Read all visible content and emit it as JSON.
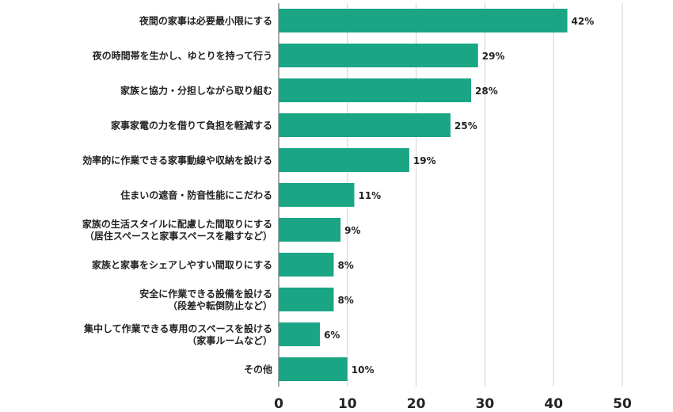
{
  "chart_data": {
    "type": "bar",
    "orientation": "horizontal",
    "categories": [
      [
        "夜間の家事は必要最小限にする"
      ],
      [
        "夜の時間帯を生かし、ゆとりを持って行う"
      ],
      [
        "家族と協力・分担しながら取り組む"
      ],
      [
        "家事家電の力を借りて負担を軽減する"
      ],
      [
        "効率的に作業できる家事動線や収納を設ける"
      ],
      [
        "住まいの遮音・防音性能にこだわる"
      ],
      [
        "家族の生活スタイルに配慮した間取りにする",
        "（居住スペースと家事スペースを離すなど）"
      ],
      [
        "家族と家事をシェアしやすい間取りにする"
      ],
      [
        "安全に作業できる設備を設ける",
        "（段差や転倒防止など）"
      ],
      [
        "集中して作業できる専用のスペースを設ける",
        "（家事ルームなど）"
      ],
      [
        "その他"
      ]
    ],
    "values": [
      42,
      29,
      28,
      25,
      19,
      11,
      9,
      8,
      8,
      6,
      10
    ],
    "value_labels": [
      "42%",
      "29%",
      "28%",
      "25%",
      "19%",
      "11%",
      "9%",
      "8%",
      "8%",
      "6%",
      "10%"
    ],
    "xlim": [
      0,
      50
    ],
    "xticks": [
      0,
      10,
      20,
      30,
      40,
      50
    ],
    "grid": true,
    "bar_color": "#1aa585"
  }
}
